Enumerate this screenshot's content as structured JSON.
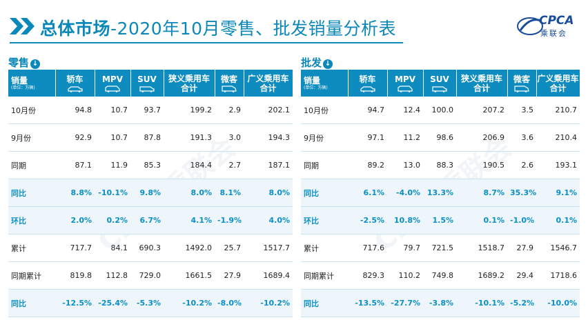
{
  "header": {
    "title_bold": "总体市场",
    "title_rest": "-2020年10月零售、批发销量分析表",
    "logo_text": "CPCA",
    "logo_cn": "乘联会"
  },
  "watermark": "CPCA乘联会",
  "colors": {
    "accent": "#0b87b8",
    "header_bg": "#0e8cc0",
    "pct_text": "#0b8fc7"
  },
  "columns": {
    "rowhead_label": "销量",
    "rowhead_unit": "(单位：万辆)",
    "c1": "轿车",
    "c2": "MPV",
    "c3": "SUV",
    "c4a": "狭义乘用车",
    "c4b": "合计",
    "c5": "微客",
    "c6a": "广义乘用车",
    "c6b": "合计"
  },
  "retail": {
    "label": "零售",
    "rows": [
      {
        "label": "10月份",
        "v": [
          "94.8",
          "10.7",
          "93.7",
          "199.2",
          "2.9",
          "202.1"
        ],
        "pct": false
      },
      {
        "label": "9月份",
        "v": [
          "92.9",
          "10.7",
          "87.8",
          "191.3",
          "3.0",
          "194.3"
        ],
        "pct": false
      },
      {
        "label": "同期",
        "v": [
          "87.1",
          "11.9",
          "85.3",
          "184.4",
          "2.7",
          "187.1"
        ],
        "pct": false
      },
      {
        "label": "同比",
        "v": [
          "8.8%",
          "-10.1%",
          "9.8%",
          "8.0%",
          "8.1%",
          "8.0%"
        ],
        "pct": true
      },
      {
        "label": "环比",
        "v": [
          "2.0%",
          "0.2%",
          "6.7%",
          "4.1%",
          "-1.9%",
          "4.0%"
        ],
        "pct": true
      },
      {
        "label": "累计",
        "v": [
          "717.7",
          "84.1",
          "690.3",
          "1492.0",
          "25.7",
          "1517.7"
        ],
        "pct": false
      },
      {
        "label": "同期累计",
        "v": [
          "819.8",
          "112.8",
          "729.0",
          "1661.5",
          "27.9",
          "1689.4"
        ],
        "pct": false
      },
      {
        "label": "同比",
        "v": [
          "-12.5%",
          "-25.4%",
          "-5.3%",
          "-10.2%",
          "-8.0%",
          "-10.2%"
        ],
        "pct": true
      }
    ]
  },
  "wholesale": {
    "label": "批发",
    "rows": [
      {
        "label": "10月份",
        "v": [
          "94.7",
          "12.4",
          "100.0",
          "207.2",
          "3.5",
          "210.7"
        ],
        "pct": false
      },
      {
        "label": "9月份",
        "v": [
          "97.1",
          "11.2",
          "98.6",
          "206.9",
          "3.6",
          "210.4"
        ],
        "pct": false
      },
      {
        "label": "同期",
        "v": [
          "89.2",
          "13.0",
          "88.3",
          "190.5",
          "2.6",
          "193.1"
        ],
        "pct": false
      },
      {
        "label": "同比",
        "v": [
          "6.1%",
          "-4.0%",
          "13.3%",
          "8.7%",
          "35.3%",
          "9.1%"
        ],
        "pct": true
      },
      {
        "label": "环比",
        "v": [
          "-2.5%",
          "10.8%",
          "1.5%",
          "0.1%",
          "-1.0%",
          "0.1%"
        ],
        "pct": true
      },
      {
        "label": "累计",
        "v": [
          "717.6",
          "79.7",
          "721.5",
          "1518.7",
          "27.9",
          "1546.7"
        ],
        "pct": false
      },
      {
        "label": "同期累计",
        "v": [
          "829.3",
          "110.2",
          "749.8",
          "1689.2",
          "29.4",
          "1718.6"
        ],
        "pct": false
      },
      {
        "label": "同比",
        "v": [
          "-13.5%",
          "-27.7%",
          "-3.8%",
          "-10.1%",
          "-5.2%",
          "-10.0%"
        ],
        "pct": true
      }
    ]
  }
}
